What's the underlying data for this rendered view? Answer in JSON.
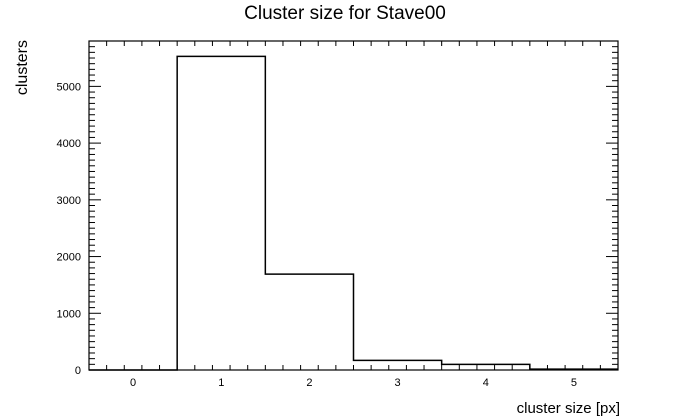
{
  "chart_data": {
    "type": "bar",
    "title": "Cluster size for Stave00",
    "xlabel": "cluster size [px]",
    "ylabel": "clusters",
    "x_ticks": [
      0,
      1,
      2,
      3,
      4,
      5
    ],
    "y_ticks": [
      0,
      1000,
      2000,
      3000,
      4000,
      5000
    ],
    "xlim": [
      -0.5,
      5.5
    ],
    "ylim": [
      0,
      5800
    ],
    "bins": [
      {
        "low": -0.5,
        "high": 0.5,
        "value": 0
      },
      {
        "low": 0.5,
        "high": 1.5,
        "value": 5530
      },
      {
        "low": 1.5,
        "high": 2.5,
        "value": 1690
      },
      {
        "low": 2.5,
        "high": 3.5,
        "value": 170
      },
      {
        "low": 3.5,
        "high": 4.5,
        "value": 100
      },
      {
        "low": 4.5,
        "high": 5.5,
        "value": 15
      }
    ],
    "grid": false,
    "colors": {
      "line": "#000000",
      "background": "#ffffff"
    }
  }
}
